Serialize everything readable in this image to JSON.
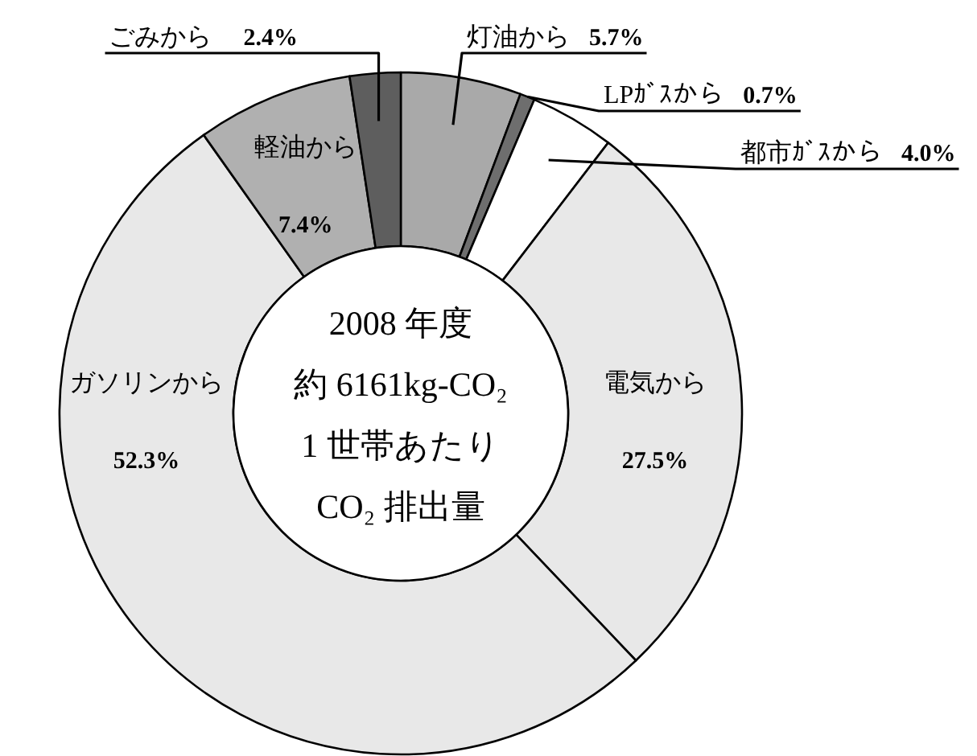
{
  "chart_data": {
    "type": "donut",
    "categories": [
      "灯油から",
      "LPｶﾞｽから",
      "都市ｶﾞｽから",
      "電気から",
      "ガソリンから",
      "軽油から",
      "ごみから"
    ],
    "values": [
      5.7,
      0.7,
      4.0,
      27.5,
      52.3,
      7.4,
      2.4
    ],
    "colors": [
      "#a9a9a9",
      "#6e6e6e",
      "#ffffff",
      "#e8e8e8",
      "#e8e8e8",
      "#b0b0b0",
      "#5e5e5e"
    ],
    "value_labels": [
      "5.7%",
      "0.7%",
      "4.0%",
      "27.5%",
      "52.3%",
      "7.4%",
      "2.4%"
    ],
    "annotations": [
      "2008 年度",
      "約 6161kg-CO₂",
      "1 世帯あたり",
      "CO₂ 排出量"
    ]
  }
}
